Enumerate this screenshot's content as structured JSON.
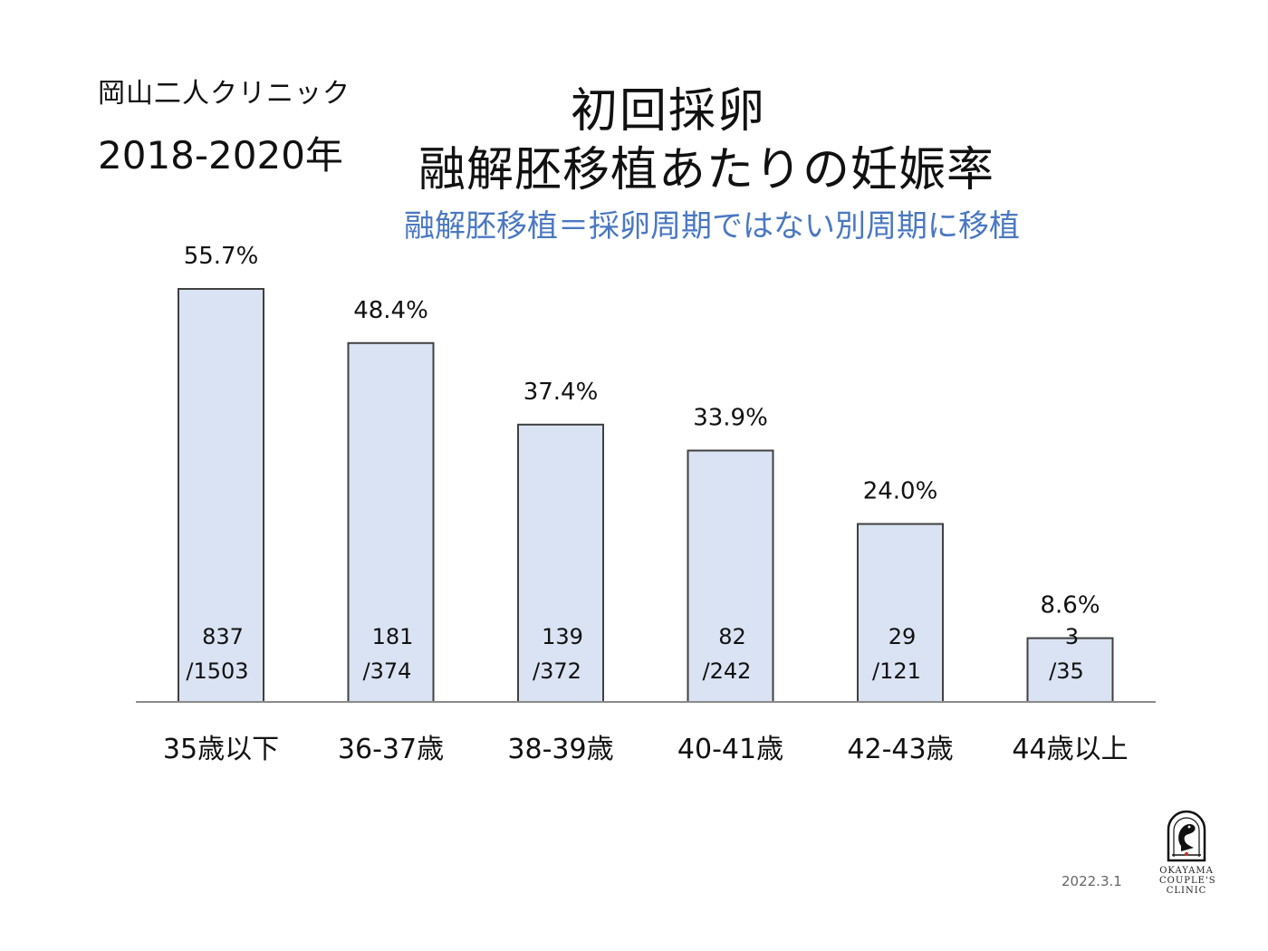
{
  "header": {
    "clinic_name": "岡山二人クリニック",
    "period": "2018-2020年",
    "title_line1": "初回採卵",
    "title_line2": "融解胚移植あたりの妊娠率",
    "subtitle": "融解胚移植＝採卵周期ではない別周期に移植"
  },
  "footer": {
    "logo_line1": "OKAYAMA",
    "logo_line2": "COUPLE'S",
    "logo_line3": "CLINIC",
    "date": "2022.3.1"
  },
  "colors": {
    "bar_fill": "#dae3f3",
    "bar_stroke": "#404040",
    "subtitle": "#4a78c2",
    "logo_accent": "#c0392b"
  },
  "chart_data": {
    "type": "bar",
    "categories": [
      "35歳以下",
      "36-37歳",
      "38-39歳",
      "40-41歳",
      "42-43歳",
      "44歳以上"
    ],
    "values": [
      55.7,
      48.4,
      37.4,
      33.9,
      24.0,
      8.6
    ],
    "value_labels": [
      "55.7%",
      "48.4%",
      "37.4%",
      "33.9%",
      "24.0%",
      "8.6%"
    ],
    "numerators": [
      "837",
      "181",
      "139",
      "82",
      "29",
      "3"
    ],
    "denominators": [
      "/1503",
      "/374",
      "/372",
      "/242",
      "/121",
      "/35"
    ],
    "title": "初回採卵\n融解胚移植あたりの妊娠率",
    "xlabel": "",
    "ylabel": "",
    "ylim": [
      0,
      60
    ],
    "grid": false,
    "legend": "none"
  }
}
